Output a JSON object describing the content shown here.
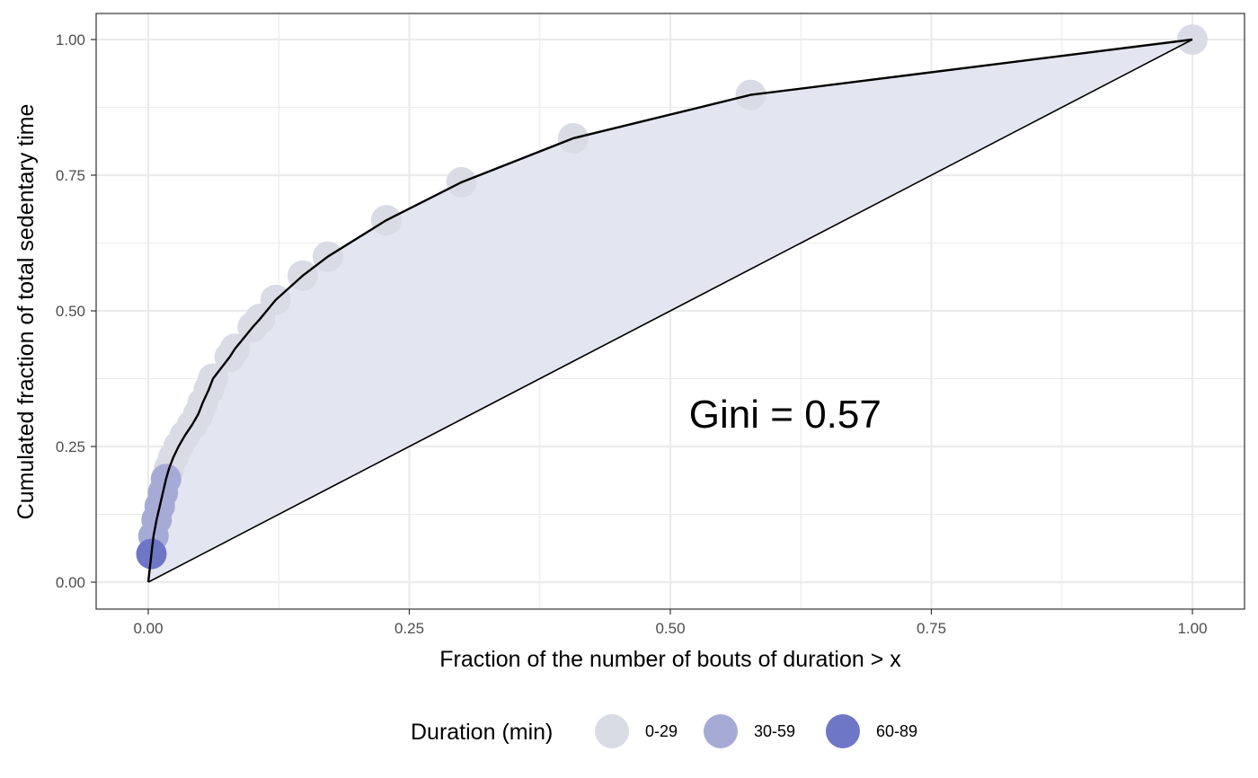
{
  "chart_data": {
    "type": "scatter",
    "xlabel": "Fraction of the number of bouts of duration > x",
    "ylabel": "Cumulated fraction of total sedentary time",
    "xlim": [
      0,
      1
    ],
    "ylim": [
      0,
      1
    ],
    "x_ticks": [
      "0.00",
      "0.25",
      "0.50",
      "0.75",
      "1.00"
    ],
    "y_ticks": [
      "0.00",
      "0.25",
      "0.50",
      "0.75",
      "1.00"
    ],
    "grid": true,
    "annotation": {
      "text": "Gini = 0.57",
      "x": 0.61,
      "y": 0.31
    },
    "legend": {
      "title": "Duration (min)",
      "position": "bottom",
      "items": [
        {
          "label": "0-29",
          "color": "#d9dbe5"
        },
        {
          "label": "30-59",
          "color": "#a6abd6"
        },
        {
          "label": "60-89",
          "color": "#6e76c6"
        }
      ]
    },
    "area_fill": "#e3e5f1",
    "line_color": "#000000",
    "points": [
      {
        "x": 0.003,
        "y": 0.052,
        "group": "60-89"
      },
      {
        "x": 0.005,
        "y": 0.085,
        "group": "30-59"
      },
      {
        "x": 0.008,
        "y": 0.115,
        "group": "30-59"
      },
      {
        "x": 0.011,
        "y": 0.14,
        "group": "30-59"
      },
      {
        "x": 0.014,
        "y": 0.165,
        "group": "30-59"
      },
      {
        "x": 0.017,
        "y": 0.19,
        "group": "30-59"
      },
      {
        "x": 0.02,
        "y": 0.21,
        "group": "0-29"
      },
      {
        "x": 0.024,
        "y": 0.23,
        "group": "0-29"
      },
      {
        "x": 0.029,
        "y": 0.25,
        "group": "0-29"
      },
      {
        "x": 0.035,
        "y": 0.27,
        "group": "0-29"
      },
      {
        "x": 0.042,
        "y": 0.29,
        "group": "0-29"
      },
      {
        "x": 0.048,
        "y": 0.31,
        "group": "0-29"
      },
      {
        "x": 0.052,
        "y": 0.33,
        "group": "0-29"
      },
      {
        "x": 0.058,
        "y": 0.355,
        "group": "0-29"
      },
      {
        "x": 0.062,
        "y": 0.375,
        "group": "0-29"
      },
      {
        "x": 0.078,
        "y": 0.415,
        "group": "0-29"
      },
      {
        "x": 0.083,
        "y": 0.43,
        "group": "0-29"
      },
      {
        "x": 0.1,
        "y": 0.47,
        "group": "0-29"
      },
      {
        "x": 0.107,
        "y": 0.485,
        "group": "0-29"
      },
      {
        "x": 0.122,
        "y": 0.52,
        "group": "0-29"
      },
      {
        "x": 0.148,
        "y": 0.565,
        "group": "0-29"
      },
      {
        "x": 0.172,
        "y": 0.6,
        "group": "0-29"
      },
      {
        "x": 0.228,
        "y": 0.667,
        "group": "0-29"
      },
      {
        "x": 0.3,
        "y": 0.737,
        "group": "0-29"
      },
      {
        "x": 0.407,
        "y": 0.818,
        "group": "0-29"
      },
      {
        "x": 0.577,
        "y": 0.898,
        "group": "0-29"
      },
      {
        "x": 1.0,
        "y": 1.0,
        "group": "0-29"
      }
    ]
  }
}
